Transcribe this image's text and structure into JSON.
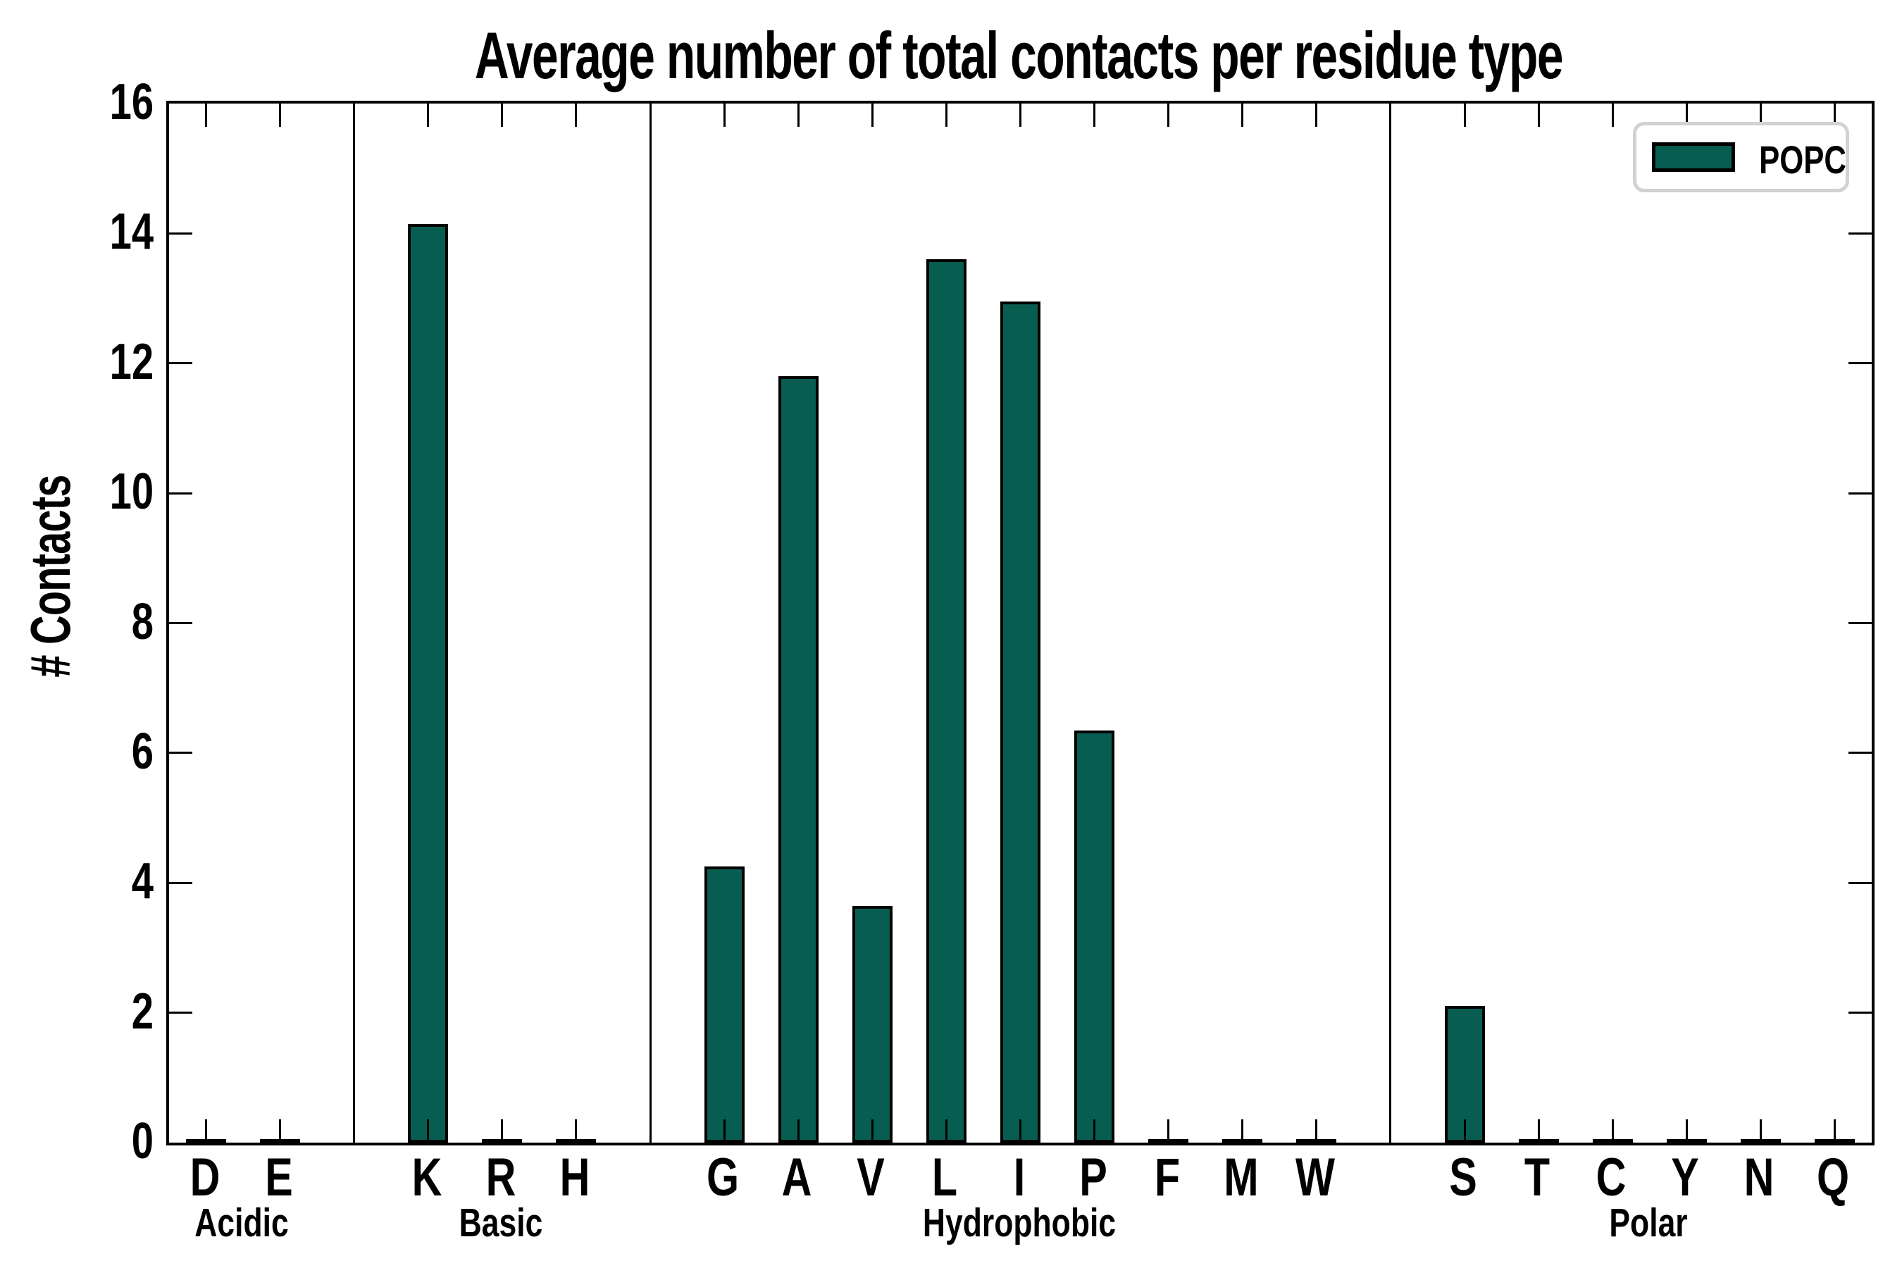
{
  "title": "Average number of total contacts per residue type",
  "ylabel": "# Contacts",
  "legend": {
    "label": "POPC"
  },
  "colors": {
    "bar_fill": "#075e50",
    "bar_edge": "#000000",
    "axis": "#000000",
    "legend_border": "#d2d2d2",
    "background": "#ffffff"
  },
  "chart_data": {
    "type": "bar",
    "title": "Average number of total contacts per residue type",
    "xlabel": "",
    "ylabel": "# Contacts",
    "ylim": [
      0,
      16
    ],
    "yticks": [
      0,
      2,
      4,
      6,
      8,
      10,
      12,
      14,
      16
    ],
    "grid": false,
    "legend_position": "upper right",
    "tick_direction": "in",
    "groups": [
      {
        "label": "Acidic",
        "categories": [
          "D",
          "E"
        ],
        "values": [
          0,
          0
        ]
      },
      {
        "label": "Basic",
        "categories": [
          "K",
          "R",
          "H"
        ],
        "values": [
          14.15,
          0,
          0
        ]
      },
      {
        "label": "Hydrophobic",
        "categories": [
          "G",
          "A",
          "V",
          "L",
          "I",
          "P",
          "F",
          "M",
          "W"
        ],
        "values": [
          4.25,
          11.8,
          3.65,
          13.6,
          12.95,
          6.35,
          0,
          0,
          0
        ]
      },
      {
        "label": "Polar",
        "categories": [
          "S",
          "T",
          "C",
          "Y",
          "N",
          "Q"
        ],
        "values": [
          2.1,
          0,
          0,
          0,
          0,
          0
        ]
      }
    ],
    "series": [
      {
        "name": "POPC",
        "values_by_residue": {
          "D": 0,
          "E": 0,
          "K": 14.15,
          "R": 0,
          "H": 0,
          "G": 4.25,
          "A": 11.8,
          "V": 3.65,
          "L": 13.6,
          "I": 12.95,
          "P": 6.35,
          "F": 0,
          "M": 0,
          "W": 0,
          "S": 2.1,
          "T": 0,
          "C": 0,
          "Y": 0,
          "N": 0,
          "Q": 0
        }
      }
    ]
  }
}
